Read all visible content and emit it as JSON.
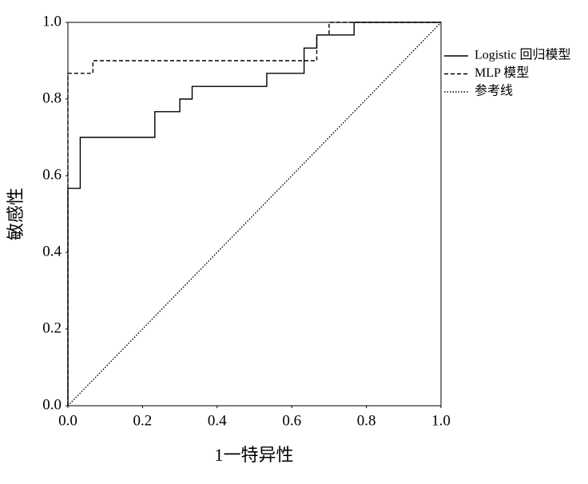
{
  "chart_data": {
    "type": "line",
    "xlabel": "1一特异性",
    "ylabel": "敏感性",
    "xlim": [
      0,
      1
    ],
    "ylim": [
      0,
      1
    ],
    "xticks": [
      {
        "value": 0,
        "label": "0.0"
      },
      0.2,
      0.4,
      0.6,
      0.8,
      {
        "value": 1,
        "label": "1.0"
      }
    ],
    "yticks": [
      {
        "value": 0,
        "label": "0.0"
      },
      0.2,
      0.4,
      0.6,
      0.8,
      {
        "value": 1,
        "label": "1.0"
      }
    ],
    "grid": false,
    "legend": "right",
    "series": [
      {
        "name": "Logistic 回归模型",
        "color": "#000000",
        "dash": "solid",
        "x": [
          0,
          0,
          0.033,
          0.033,
          0.233,
          0.233,
          0.3,
          0.3,
          0.333,
          0.333,
          0.533,
          0.533,
          0.633,
          0.633,
          0.667,
          0.667,
          0.767,
          0.767,
          1
        ],
        "values": [
          0,
          0.567,
          0.567,
          0.7,
          0.7,
          0.767,
          0.767,
          0.8,
          0.8,
          0.833,
          0.833,
          0.867,
          0.867,
          0.933,
          0.933,
          0.967,
          0.967,
          1,
          1
        ]
      },
      {
        "name": "MLP 模型",
        "color": "#000000",
        "dash": "dashed",
        "x": [
          0,
          0,
          0.067,
          0.067,
          0.667,
          0.667,
          0.7,
          0.7,
          1
        ],
        "values": [
          0,
          0.867,
          0.867,
          0.9,
          0.9,
          0.967,
          0.967,
          1,
          1
        ]
      },
      {
        "name": "参考线",
        "color": "#000000",
        "dash": "dotted",
        "x": [
          0,
          1
        ],
        "values": [
          0,
          1
        ]
      }
    ]
  }
}
